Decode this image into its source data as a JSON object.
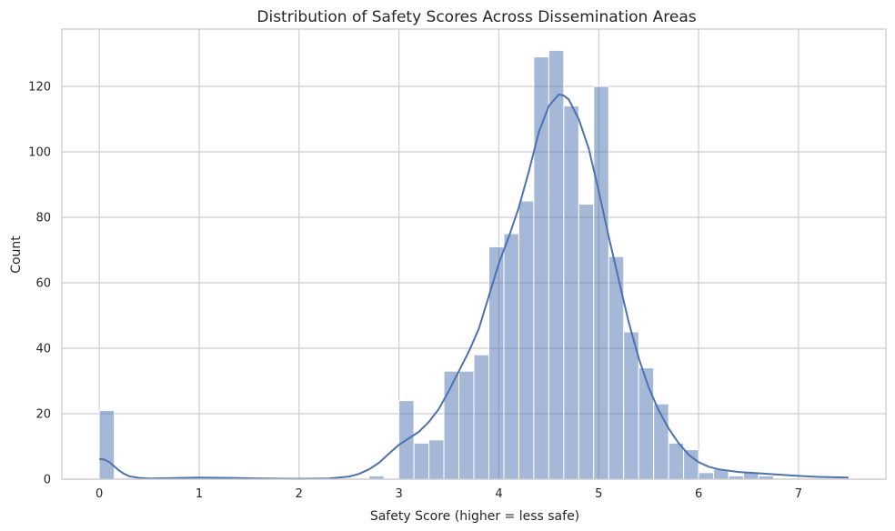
{
  "chart_data": {
    "type": "histogram",
    "title": "Distribution of Safety Scores Across Dissemination Areas",
    "xlabel": "Safety Score (higher = less safe)",
    "ylabel": "Count",
    "xlim": [
      -0.375,
      7.875
    ],
    "ylim": [
      0,
      137.5
    ],
    "xticks": [
      0,
      1,
      2,
      3,
      4,
      5,
      6,
      7
    ],
    "yticks": [
      0,
      20,
      40,
      60,
      80,
      100,
      120
    ],
    "grid": true,
    "color": "#4c72b0",
    "bins": [
      {
        "x0": 0.0,
        "x1": 0.15,
        "count": 21
      },
      {
        "x0": 2.7,
        "x1": 2.85,
        "count": 1
      },
      {
        "x0": 3.0,
        "x1": 3.15,
        "count": 24
      },
      {
        "x0": 3.15,
        "x1": 3.3,
        "count": 11
      },
      {
        "x0": 3.3,
        "x1": 3.45,
        "count": 12
      },
      {
        "x0": 3.45,
        "x1": 3.6,
        "count": 33
      },
      {
        "x0": 3.6,
        "x1": 3.75,
        "count": 33
      },
      {
        "x0": 3.75,
        "x1": 3.9,
        "count": 38
      },
      {
        "x0": 3.9,
        "x1": 4.05,
        "count": 71
      },
      {
        "x0": 4.05,
        "x1": 4.2,
        "count": 75
      },
      {
        "x0": 4.2,
        "x1": 4.35,
        "count": 85
      },
      {
        "x0": 4.35,
        "x1": 4.5,
        "count": 129
      },
      {
        "x0": 4.5,
        "x1": 4.65,
        "count": 131
      },
      {
        "x0": 4.65,
        "x1": 4.8,
        "count": 114
      },
      {
        "x0": 4.8,
        "x1": 4.95,
        "count": 84
      },
      {
        "x0": 4.95,
        "x1": 5.1,
        "count": 120
      },
      {
        "x0": 5.1,
        "x1": 5.25,
        "count": 68
      },
      {
        "x0": 5.25,
        "x1": 5.4,
        "count": 45
      },
      {
        "x0": 5.4,
        "x1": 5.55,
        "count": 34
      },
      {
        "x0": 5.55,
        "x1": 5.7,
        "count": 23
      },
      {
        "x0": 5.7,
        "x1": 5.85,
        "count": 11
      },
      {
        "x0": 5.85,
        "x1": 6.0,
        "count": 9
      },
      {
        "x0": 6.0,
        "x1": 6.15,
        "count": 2
      },
      {
        "x0": 6.15,
        "x1": 6.3,
        "count": 3
      },
      {
        "x0": 6.3,
        "x1": 6.45,
        "count": 1
      },
      {
        "x0": 6.45,
        "x1": 6.6,
        "count": 2
      },
      {
        "x0": 6.6,
        "x1": 6.75,
        "count": 1
      }
    ],
    "kde": [
      [
        0.0,
        6.2
      ],
      [
        0.05,
        6.0
      ],
      [
        0.1,
        5.2
      ],
      [
        0.15,
        3.9
      ],
      [
        0.2,
        2.6
      ],
      [
        0.25,
        1.6
      ],
      [
        0.3,
        0.9
      ],
      [
        0.4,
        0.4
      ],
      [
        0.5,
        0.2
      ],
      [
        0.7,
        0.3
      ],
      [
        1.0,
        0.5
      ],
      [
        1.3,
        0.4
      ],
      [
        1.6,
        0.2
      ],
      [
        2.0,
        0.1
      ],
      [
        2.3,
        0.2
      ],
      [
        2.5,
        0.8
      ],
      [
        2.6,
        1.6
      ],
      [
        2.7,
        3.0
      ],
      [
        2.8,
        5.0
      ],
      [
        2.9,
        7.8
      ],
      [
        3.0,
        10.5
      ],
      [
        3.1,
        12.5
      ],
      [
        3.2,
        14.5
      ],
      [
        3.3,
        17.5
      ],
      [
        3.4,
        21.5
      ],
      [
        3.5,
        27.0
      ],
      [
        3.6,
        33.0
      ],
      [
        3.7,
        39.0
      ],
      [
        3.8,
        46.0
      ],
      [
        3.9,
        56.0
      ],
      [
        4.0,
        66.0
      ],
      [
        4.1,
        74.0
      ],
      [
        4.2,
        83.0
      ],
      [
        4.3,
        94.0
      ],
      [
        4.4,
        106.0
      ],
      [
        4.5,
        114.0
      ],
      [
        4.6,
        117.5
      ],
      [
        4.65,
        117.2
      ],
      [
        4.7,
        116.0
      ],
      [
        4.8,
        110.0
      ],
      [
        4.9,
        101.0
      ],
      [
        5.0,
        88.0
      ],
      [
        5.1,
        74.0
      ],
      [
        5.2,
        61.0
      ],
      [
        5.3,
        48.0
      ],
      [
        5.4,
        37.0
      ],
      [
        5.5,
        28.0
      ],
      [
        5.6,
        21.0
      ],
      [
        5.7,
        15.5
      ],
      [
        5.8,
        11.0
      ],
      [
        5.9,
        7.5
      ],
      [
        6.0,
        5.2
      ],
      [
        6.1,
        3.8
      ],
      [
        6.2,
        3.0
      ],
      [
        6.4,
        2.2
      ],
      [
        6.6,
        1.8
      ],
      [
        6.8,
        1.4
      ],
      [
        7.0,
        1.0
      ],
      [
        7.2,
        0.7
      ],
      [
        7.5,
        0.5
      ]
    ]
  }
}
